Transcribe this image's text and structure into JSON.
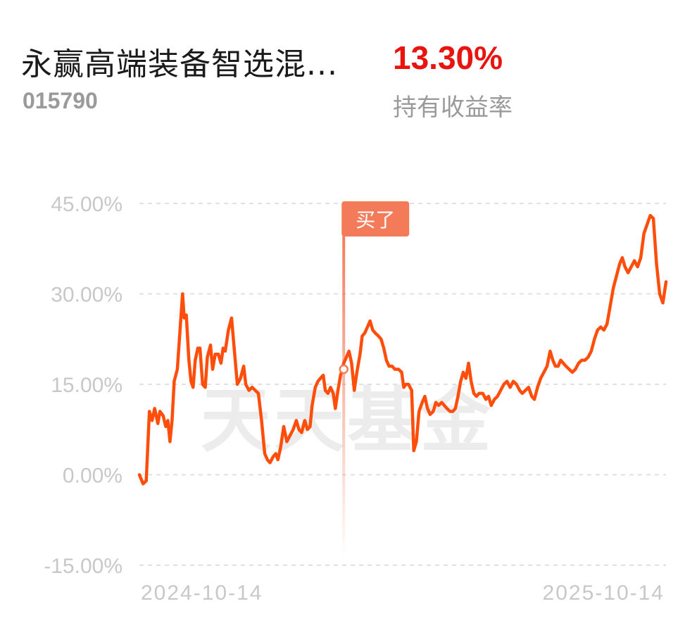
{
  "header": {
    "fund_name": "永赢高端装备智选混...",
    "fund_code": "015790",
    "return_value": "13.30%",
    "return_label": "持有收益率"
  },
  "watermark": "天天基金",
  "colors": {
    "line": "#ff4e0c",
    "buy_marker": "#f47b5a",
    "return_positive": "#e8140f",
    "axis_text": "#c8c8c8",
    "grid": "#e0e0e0"
  },
  "chart_data": {
    "type": "line",
    "title": "",
    "xlabel": "",
    "ylabel": "",
    "x_tick_labels": [
      "2024-10-14",
      "2025-10-14"
    ],
    "y_ticks": [
      45,
      30,
      15,
      0,
      -15
    ],
    "y_tick_labels": [
      "45.00%",
      "30.00%",
      "15.00%",
      "0.00%",
      "-15.00%"
    ],
    "ylim": [
      -15,
      45
    ],
    "grid": "horizontal dashed",
    "x_range": [
      0,
      100
    ],
    "series": [
      {
        "values": [
          [
            0,
            0
          ],
          [
            0.7,
            -1.5
          ],
          [
            1.3,
            -1
          ],
          [
            1.9,
            10.5
          ],
          [
            2.4,
            9
          ],
          [
            2.9,
            11
          ],
          [
            3.5,
            8.5
          ],
          [
            3.9,
            10.5
          ],
          [
            4.5,
            9.8
          ],
          [
            5,
            8
          ],
          [
            5.4,
            9
          ],
          [
            5.8,
            5.5
          ],
          [
            6.2,
            9
          ],
          [
            6.6,
            15.5
          ],
          [
            7.2,
            17.5
          ],
          [
            7.8,
            25
          ],
          [
            8.2,
            30
          ],
          [
            8.5,
            26
          ],
          [
            8.9,
            26.5
          ],
          [
            9.4,
            19
          ],
          [
            9.8,
            15.5
          ],
          [
            10.2,
            14.5
          ],
          [
            10.6,
            19
          ],
          [
            11.1,
            21
          ],
          [
            11.5,
            21
          ],
          [
            12,
            15
          ],
          [
            12.5,
            14.5
          ],
          [
            12.9,
            19.5
          ],
          [
            13.5,
            21.5
          ],
          [
            13.9,
            17.5
          ],
          [
            14.4,
            20
          ],
          [
            15,
            20
          ],
          [
            15.5,
            18.5
          ],
          [
            15.9,
            21
          ],
          [
            16.3,
            20.5
          ],
          [
            16.9,
            24
          ],
          [
            17.5,
            26
          ],
          [
            18,
            21
          ],
          [
            18.6,
            15
          ],
          [
            19.2,
            16
          ],
          [
            19.8,
            18
          ],
          [
            20.2,
            15
          ],
          [
            20.8,
            14
          ],
          [
            21.4,
            14.5
          ],
          [
            22,
            14
          ],
          [
            22.6,
            13.5
          ],
          [
            23.2,
            9
          ],
          [
            23.8,
            3.5
          ],
          [
            24.3,
            2.5
          ],
          [
            24.8,
            2
          ],
          [
            25.4,
            3
          ],
          [
            25.9,
            3.5
          ],
          [
            26.3,
            2.5
          ],
          [
            26.8,
            4.5
          ],
          [
            27.4,
            8
          ],
          [
            28,
            5.5
          ],
          [
            28.6,
            6.5
          ],
          [
            29.2,
            7.5
          ],
          [
            29.8,
            9
          ],
          [
            30.3,
            7.5
          ],
          [
            30.8,
            7
          ],
          [
            31.4,
            9
          ],
          [
            31.9,
            7.5
          ],
          [
            32.4,
            8
          ],
          [
            32.8,
            11.5
          ],
          [
            33.4,
            14.5
          ],
          [
            33.9,
            15.5
          ],
          [
            34.4,
            16
          ],
          [
            34.9,
            16.5
          ],
          [
            35.3,
            14
          ],
          [
            35.8,
            13.5
          ],
          [
            36.3,
            14.5
          ],
          [
            36.8,
            13.5
          ],
          [
            37.2,
            11
          ],
          [
            37.7,
            14
          ],
          [
            38.2,
            16.5
          ],
          [
            38.8,
            18.5
          ],
          [
            39.3,
            19.5
          ],
          [
            39.8,
            20.5
          ],
          [
            40.3,
            18.5
          ],
          [
            40.8,
            14
          ],
          [
            41.3,
            17
          ],
          [
            41.9,
            20
          ],
          [
            42.3,
            23
          ],
          [
            42.8,
            23.5
          ],
          [
            43.3,
            24.5
          ],
          [
            43.8,
            25.5
          ],
          [
            44.3,
            24
          ],
          [
            44.8,
            23.5
          ],
          [
            45.4,
            23
          ],
          [
            45.9,
            22.5
          ],
          [
            46.4,
            21
          ],
          [
            46.9,
            19
          ],
          [
            47.4,
            18
          ],
          [
            48,
            18
          ],
          [
            48.5,
            17.5
          ],
          [
            49.2,
            17.5
          ],
          [
            49.8,
            17
          ],
          [
            50.2,
            14.5
          ],
          [
            50.6,
            15
          ],
          [
            51.1,
            15
          ],
          [
            51.7,
            14
          ],
          [
            52.1,
            4
          ],
          [
            52.6,
            5.5
          ],
          [
            53.1,
            10.5
          ],
          [
            53.7,
            12
          ],
          [
            54.2,
            13
          ],
          [
            54.7,
            11
          ],
          [
            55.2,
            10
          ],
          [
            55.8,
            10.5
          ],
          [
            56.3,
            12
          ],
          [
            56.8,
            11.5
          ],
          [
            57.4,
            12
          ],
          [
            57.9,
            11.5
          ],
          [
            58.4,
            11
          ],
          [
            59,
            10.5
          ],
          [
            59.5,
            10.5
          ],
          [
            60,
            11
          ],
          [
            60.5,
            13
          ],
          [
            61,
            15.5
          ],
          [
            61.5,
            17
          ],
          [
            62,
            16
          ],
          [
            62.5,
            18.5
          ],
          [
            63,
            15.5
          ],
          [
            63.5,
            13.5
          ],
          [
            64,
            13
          ],
          [
            64.5,
            13.5
          ],
          [
            65.2,
            13.5
          ],
          [
            65.8,
            12.5
          ],
          [
            66.3,
            13
          ],
          [
            66.8,
            11.5
          ],
          [
            67.4,
            12.5
          ],
          [
            68,
            13
          ],
          [
            68.6,
            14
          ],
          [
            69.2,
            15
          ],
          [
            69.8,
            15.5
          ],
          [
            70.4,
            14.5
          ],
          [
            71,
            15.5
          ],
          [
            71.6,
            15
          ],
          [
            72.2,
            14
          ],
          [
            72.7,
            13.5
          ],
          [
            73.3,
            14
          ],
          [
            73.9,
            14.5
          ],
          [
            74.5,
            13
          ],
          [
            75,
            12.5
          ],
          [
            75.6,
            14.5
          ],
          [
            76.2,
            16
          ],
          [
            76.8,
            17
          ],
          [
            77.4,
            18
          ],
          [
            78,
            20.5
          ],
          [
            78.5,
            19
          ],
          [
            79,
            18
          ],
          [
            79.5,
            18
          ],
          [
            80,
            19
          ],
          [
            80.5,
            18.5
          ],
          [
            81,
            18
          ],
          [
            81.6,
            17.5
          ],
          [
            82.2,
            17
          ],
          [
            82.8,
            17.5
          ],
          [
            83.4,
            18.5
          ],
          [
            84,
            19
          ],
          [
            84.6,
            19
          ],
          [
            85.2,
            19.5
          ],
          [
            85.8,
            20.5
          ],
          [
            86.4,
            22.5
          ],
          [
            87,
            24
          ],
          [
            87.6,
            24.5
          ],
          [
            88.2,
            24
          ],
          [
            88.8,
            25
          ],
          [
            89.4,
            28
          ],
          [
            90,
            31
          ],
          [
            90.6,
            33
          ],
          [
            91.2,
            35
          ],
          [
            91.7,
            36
          ],
          [
            92.2,
            34.5
          ],
          [
            92.8,
            33.5
          ],
          [
            93.4,
            34.5
          ],
          [
            94,
            35.5
          ],
          [
            94.6,
            34.5
          ],
          [
            95.2,
            36
          ],
          [
            95.8,
            40
          ],
          [
            96.4,
            41.5
          ],
          [
            97,
            43
          ],
          [
            97.6,
            42.5
          ],
          [
            98.2,
            35
          ],
          [
            98.8,
            30
          ],
          [
            99.4,
            28.5
          ],
          [
            100,
            32
          ]
        ]
      }
    ],
    "annotation": {
      "label": "买了",
      "x": 38.8,
      "y": 17.5
    }
  }
}
